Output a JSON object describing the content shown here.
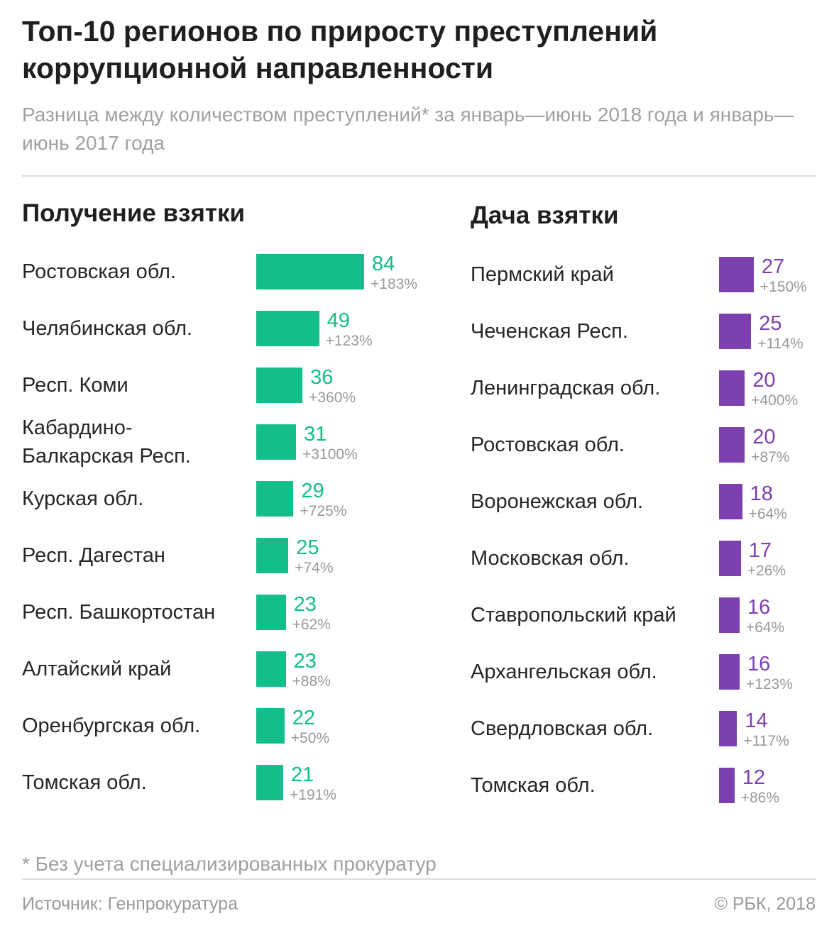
{
  "title": "Топ-10 регионов по приросту преступлений коррупционной направленности",
  "subtitle": "Разница между количеством преступлений* за январь—июнь 2018 года и январь—июнь 2017 года",
  "footnote": "* Без учета специализированных прокуратур",
  "source": "Источник: Генпрокуратура",
  "copyright": "© РБК, 2018",
  "colors": {
    "receiving": "#13be8a",
    "giving": "#7d40b0"
  },
  "chart_data": [
    {
      "type": "bar",
      "title": "Получение взятки",
      "orientation": "horizontal",
      "categories": [
        "Ростовская обл.",
        "Челябинская обл.",
        "Респ. Коми",
        "Кабардино-\nБалкарская Респ.",
        "Курская обл.",
        "Респ. Дагестан",
        "Респ. Башкортостан",
        "Алтайский край",
        "Оренбургская обл.",
        "Томская обл."
      ],
      "values": [
        84,
        49,
        36,
        31,
        29,
        25,
        23,
        23,
        22,
        21
      ],
      "changes": [
        "+183%",
        "+123%",
        "+360%",
        "+3100%",
        "+725%",
        "+74%",
        "+62%",
        "+88%",
        "+50%",
        "+191%"
      ],
      "xlim": [
        0,
        84
      ]
    },
    {
      "type": "bar",
      "title": "Дача взятки",
      "orientation": "horizontal",
      "categories": [
        "Пермский край",
        "Чеченская Респ.",
        "Ленинградская обл.",
        "Ростовская обл.",
        "Воронежская обл.",
        "Московская обл.",
        "Ставропольский край",
        "Архангельская обл.",
        "Свердловская обл.",
        "Томская обл."
      ],
      "values": [
        27,
        25,
        20,
        20,
        18,
        17,
        16,
        16,
        14,
        12
      ],
      "changes": [
        "+150%",
        "+114%",
        "+400%",
        "+87%",
        "+64%",
        "+26%",
        "+64%",
        "+123%",
        "+117%",
        "+86%"
      ],
      "xlim": [
        0,
        84
      ]
    }
  ]
}
